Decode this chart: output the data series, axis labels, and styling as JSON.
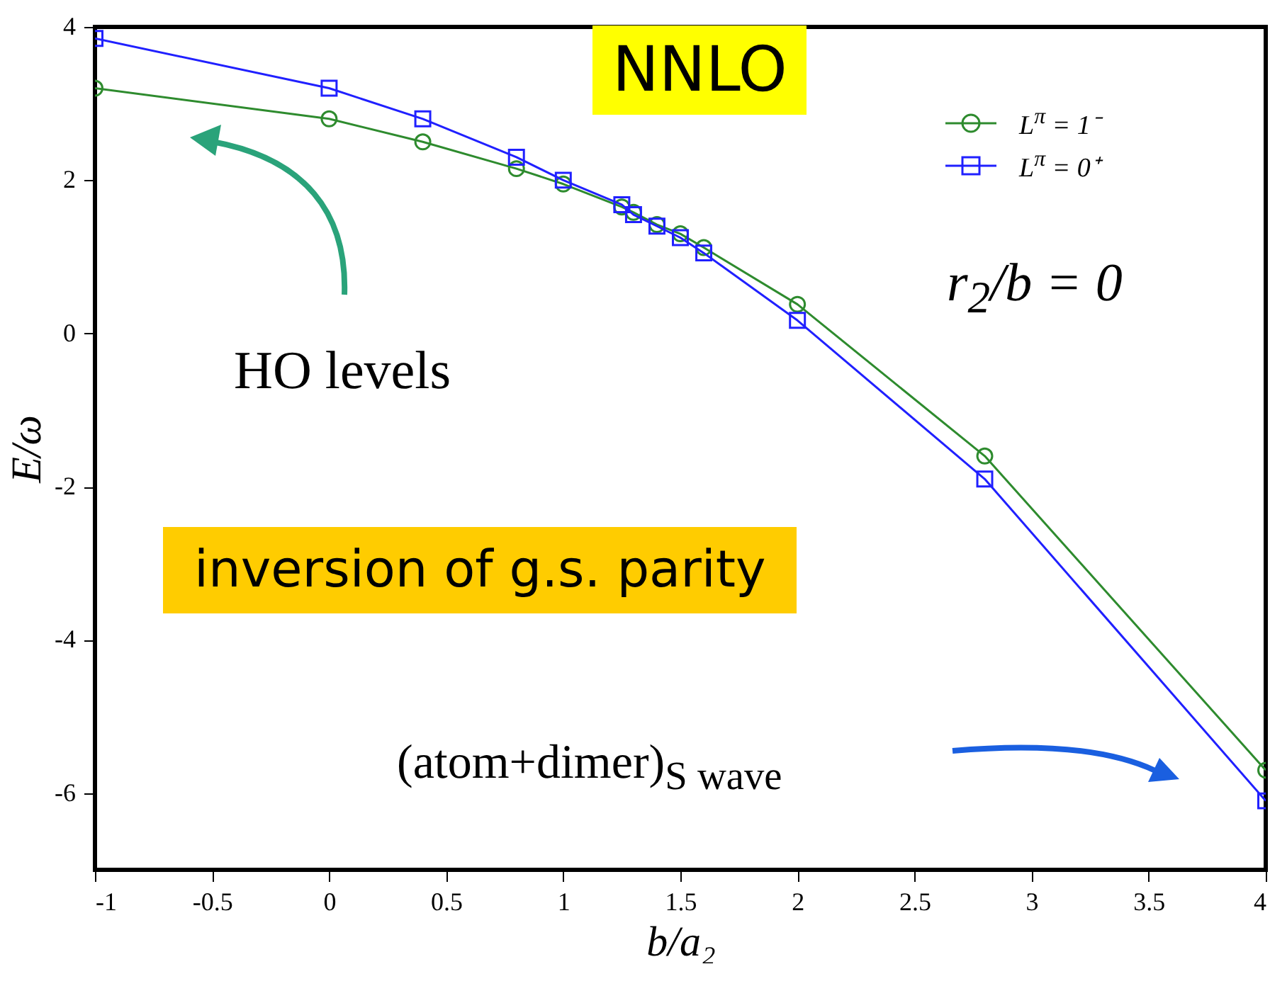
{
  "chart_data": {
    "type": "line",
    "xlabel": "b/a₂",
    "ylabel": "E/ω",
    "x": [
      -1,
      0,
      0.4,
      0.8,
      1,
      1.25,
      1.3,
      1.4,
      1.5,
      1.6,
      2,
      2.8,
      4
    ],
    "series": [
      {
        "name": "L$^{π}$ = 1⁻",
        "color": "#2e8b2e",
        "marker": "circle",
        "values": [
          3.2,
          2.8,
          2.5,
          2.15,
          1.95,
          1.65,
          1.58,
          1.42,
          1.3,
          1.12,
          0.38,
          -1.6,
          -5.7
        ]
      },
      {
        "name": "L$^{π}$ = 0⁺",
        "color": "#2020ff",
        "marker": "square",
        "values": [
          3.85,
          3.2,
          2.8,
          2.3,
          2.0,
          1.68,
          1.55,
          1.4,
          1.25,
          1.05,
          0.17,
          -1.9,
          -6.1
        ]
      }
    ],
    "xlim": [
      -1,
      4
    ],
    "ylim": [
      -7,
      4
    ],
    "xticks": [
      -1,
      -0.5,
      0,
      0.5,
      1,
      1.5,
      2,
      2.5,
      3,
      3.5,
      4
    ],
    "yticks": [
      -6,
      -4,
      -2,
      0,
      2,
      4
    ],
    "legend": "top right",
    "line_style": "solid",
    "annotations": [
      "NNLO",
      "r$_{2}$/b = 0",
      "HO levels",
      "inversion of g.s. parity",
      "(atom+dimer)$_{S wave}$"
    ]
  }
}
